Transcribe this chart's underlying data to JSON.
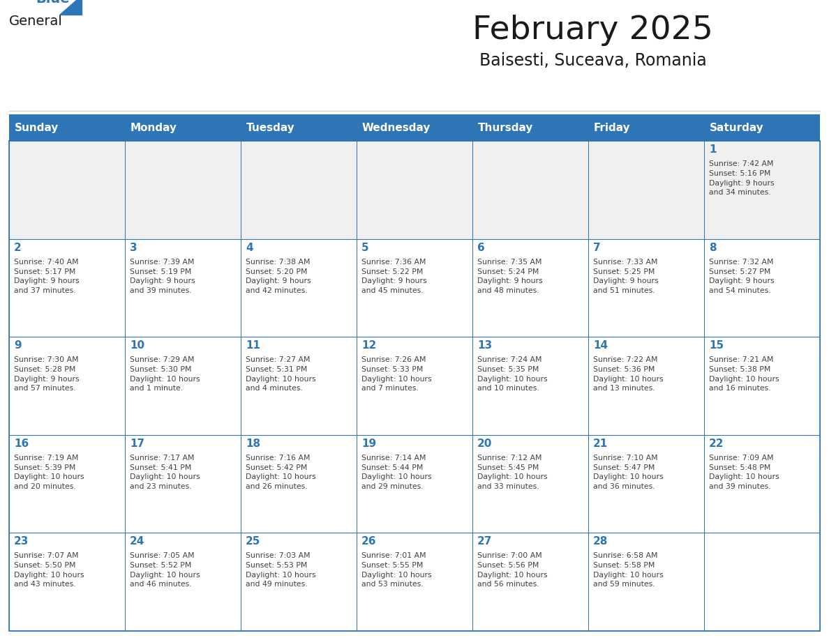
{
  "title": "February 2025",
  "subtitle": "Baisesti, Suceava, Romania",
  "header_color": "#2E75B6",
  "header_text_color": "#FFFFFF",
  "cell_bg_color": "#FFFFFF",
  "cell_alt_bg_color": "#F0F0F0",
  "border_color": "#2E75B6",
  "day_number_color": "#2E75B6",
  "cell_text_color": "#404040",
  "days_of_week": [
    "Sunday",
    "Monday",
    "Tuesday",
    "Wednesday",
    "Thursday",
    "Friday",
    "Saturday"
  ],
  "weeks": [
    [
      {
        "day": null,
        "info": null
      },
      {
        "day": null,
        "info": null
      },
      {
        "day": null,
        "info": null
      },
      {
        "day": null,
        "info": null
      },
      {
        "day": null,
        "info": null
      },
      {
        "day": null,
        "info": null
      },
      {
        "day": 1,
        "info": "Sunrise: 7:42 AM\nSunset: 5:16 PM\nDaylight: 9 hours\nand 34 minutes."
      }
    ],
    [
      {
        "day": 2,
        "info": "Sunrise: 7:40 AM\nSunset: 5:17 PM\nDaylight: 9 hours\nand 37 minutes."
      },
      {
        "day": 3,
        "info": "Sunrise: 7:39 AM\nSunset: 5:19 PM\nDaylight: 9 hours\nand 39 minutes."
      },
      {
        "day": 4,
        "info": "Sunrise: 7:38 AM\nSunset: 5:20 PM\nDaylight: 9 hours\nand 42 minutes."
      },
      {
        "day": 5,
        "info": "Sunrise: 7:36 AM\nSunset: 5:22 PM\nDaylight: 9 hours\nand 45 minutes."
      },
      {
        "day": 6,
        "info": "Sunrise: 7:35 AM\nSunset: 5:24 PM\nDaylight: 9 hours\nand 48 minutes."
      },
      {
        "day": 7,
        "info": "Sunrise: 7:33 AM\nSunset: 5:25 PM\nDaylight: 9 hours\nand 51 minutes."
      },
      {
        "day": 8,
        "info": "Sunrise: 7:32 AM\nSunset: 5:27 PM\nDaylight: 9 hours\nand 54 minutes."
      }
    ],
    [
      {
        "day": 9,
        "info": "Sunrise: 7:30 AM\nSunset: 5:28 PM\nDaylight: 9 hours\nand 57 minutes."
      },
      {
        "day": 10,
        "info": "Sunrise: 7:29 AM\nSunset: 5:30 PM\nDaylight: 10 hours\nand 1 minute."
      },
      {
        "day": 11,
        "info": "Sunrise: 7:27 AM\nSunset: 5:31 PM\nDaylight: 10 hours\nand 4 minutes."
      },
      {
        "day": 12,
        "info": "Sunrise: 7:26 AM\nSunset: 5:33 PM\nDaylight: 10 hours\nand 7 minutes."
      },
      {
        "day": 13,
        "info": "Sunrise: 7:24 AM\nSunset: 5:35 PM\nDaylight: 10 hours\nand 10 minutes."
      },
      {
        "day": 14,
        "info": "Sunrise: 7:22 AM\nSunset: 5:36 PM\nDaylight: 10 hours\nand 13 minutes."
      },
      {
        "day": 15,
        "info": "Sunrise: 7:21 AM\nSunset: 5:38 PM\nDaylight: 10 hours\nand 16 minutes."
      }
    ],
    [
      {
        "day": 16,
        "info": "Sunrise: 7:19 AM\nSunset: 5:39 PM\nDaylight: 10 hours\nand 20 minutes."
      },
      {
        "day": 17,
        "info": "Sunrise: 7:17 AM\nSunset: 5:41 PM\nDaylight: 10 hours\nand 23 minutes."
      },
      {
        "day": 18,
        "info": "Sunrise: 7:16 AM\nSunset: 5:42 PM\nDaylight: 10 hours\nand 26 minutes."
      },
      {
        "day": 19,
        "info": "Sunrise: 7:14 AM\nSunset: 5:44 PM\nDaylight: 10 hours\nand 29 minutes."
      },
      {
        "day": 20,
        "info": "Sunrise: 7:12 AM\nSunset: 5:45 PM\nDaylight: 10 hours\nand 33 minutes."
      },
      {
        "day": 21,
        "info": "Sunrise: 7:10 AM\nSunset: 5:47 PM\nDaylight: 10 hours\nand 36 minutes."
      },
      {
        "day": 22,
        "info": "Sunrise: 7:09 AM\nSunset: 5:48 PM\nDaylight: 10 hours\nand 39 minutes."
      }
    ],
    [
      {
        "day": 23,
        "info": "Sunrise: 7:07 AM\nSunset: 5:50 PM\nDaylight: 10 hours\nand 43 minutes."
      },
      {
        "day": 24,
        "info": "Sunrise: 7:05 AM\nSunset: 5:52 PM\nDaylight: 10 hours\nand 46 minutes."
      },
      {
        "day": 25,
        "info": "Sunrise: 7:03 AM\nSunset: 5:53 PM\nDaylight: 10 hours\nand 49 minutes."
      },
      {
        "day": 26,
        "info": "Sunrise: 7:01 AM\nSunset: 5:55 PM\nDaylight: 10 hours\nand 53 minutes."
      },
      {
        "day": 27,
        "info": "Sunrise: 7:00 AM\nSunset: 5:56 PM\nDaylight: 10 hours\nand 56 minutes."
      },
      {
        "day": 28,
        "info": "Sunrise: 6:58 AM\nSunset: 5:58 PM\nDaylight: 10 hours\nand 59 minutes."
      },
      {
        "day": null,
        "info": null
      }
    ]
  ],
  "logo_text_general": "General",
  "logo_text_blue": "Blue",
  "logo_color_general": "#1a1a1a",
  "logo_color_blue": "#2E75B6",
  "logo_triangle_color": "#2E75B6",
  "fig_width": 11.88,
  "fig_height": 9.18,
  "fig_dpi": 100
}
